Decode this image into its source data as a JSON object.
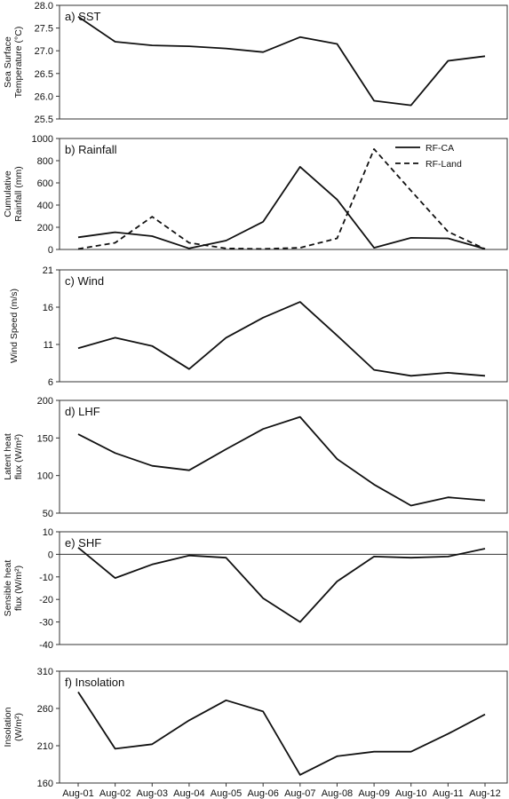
{
  "chart_data": {
    "type": "line",
    "categories": [
      "Aug-01",
      "Aug-02",
      "Aug-03",
      "Aug-04",
      "Aug-05",
      "Aug-06",
      "Aug-07",
      "Aug-08",
      "Aug-09",
      "Aug-10",
      "Aug-11",
      "Aug-12"
    ],
    "panels": [
      {
        "id": "sst",
        "title": "a) SST",
        "ylabel": [
          "Sea Surface",
          "Temperature (°C)"
        ],
        "ylim": [
          25.5,
          28.0
        ],
        "yticks": [
          "28.0",
          "27.5",
          "27.0",
          "26.5",
          "26.0",
          "25.5"
        ],
        "tick_values": [
          28.0,
          27.5,
          27.0,
          26.5,
          26.0,
          25.5
        ],
        "series": [
          {
            "dash": false,
            "values": [
              27.75,
              27.2,
              27.12,
              27.1,
              27.05,
              26.97,
              27.3,
              27.15,
              25.9,
              25.8,
              26.78,
              26.88
            ]
          }
        ]
      },
      {
        "id": "rainfall",
        "title": "b) Rainfall",
        "ylabel": [
          "Cumulative",
          "Rainfall (mm)"
        ],
        "ylim": [
          0,
          1000
        ],
        "yticks": [
          "1000",
          "800",
          "600",
          "400",
          "200",
          "0"
        ],
        "tick_values": [
          1000,
          800,
          600,
          400,
          200,
          0
        ],
        "legend": true,
        "series": [
          {
            "name": "RF-CA",
            "dash": false,
            "values": [
              110,
              155,
              120,
              10,
              80,
              250,
              745,
              450,
              15,
              105,
              100,
              5
            ]
          },
          {
            "name": "RF-Land",
            "dash": true,
            "values": [
              5,
              60,
              295,
              60,
              10,
              5,
              15,
              100,
              905,
              530,
              160,
              5
            ]
          }
        ]
      },
      {
        "id": "wind",
        "title": "c) Wind",
        "ylabel": [
          "Wind Speed (m/s)"
        ],
        "ylim": [
          6,
          21
        ],
        "yticks": [
          "21",
          "16",
          "11",
          "6"
        ],
        "tick_values": [
          21,
          16,
          11,
          6
        ],
        "series": [
          {
            "dash": false,
            "values": [
              10.5,
              11.9,
              10.8,
              7.7,
              11.9,
              14.6,
              16.7,
              12.2,
              7.6,
              6.8,
              7.2,
              6.8
            ]
          }
        ]
      },
      {
        "id": "lhf",
        "title": "d) LHF",
        "ylabel": [
          "Latent  heat",
          "flux (W/m²)"
        ],
        "ylim": [
          50,
          200
        ],
        "yticks": [
          "200",
          "150",
          "100",
          "50"
        ],
        "tick_values": [
          200,
          150,
          100,
          50
        ],
        "series": [
          {
            "dash": false,
            "values": [
              155,
              130,
              113,
              107,
              135,
              162,
              178,
              122,
              88,
              60,
              71,
              67
            ]
          }
        ]
      },
      {
        "id": "shf",
        "title": "e) SHF",
        "ylabel": [
          "Sensible heat",
          "flux (W/m²)"
        ],
        "ylim": [
          -40,
          10
        ],
        "yticks": [
          "10",
          "0",
          "-10",
          "-20",
          "-30",
          "-40"
        ],
        "tick_values": [
          10,
          0,
          -10,
          -20,
          -30,
          -40
        ],
        "zero_line": true,
        "series": [
          {
            "dash": false,
            "values": [
              3,
              -10.5,
              -4.5,
              -0.5,
              -1.5,
              -19.5,
              -30,
              -12,
              -1,
              -1.5,
              -1,
              2.5
            ]
          }
        ]
      },
      {
        "id": "insolation",
        "title": "f) Insolation",
        "ylabel": [
          "Insolation",
          "(W/m²)"
        ],
        "ylim": [
          160,
          310
        ],
        "yticks": [
          "310",
          "260",
          "210",
          "160"
        ],
        "tick_values": [
          310,
          260,
          210,
          160
        ],
        "series": [
          {
            "dash": false,
            "values": [
              282,
              206,
              212,
              244,
              271,
              256,
              171,
              196,
              202,
              202,
              226,
              252
            ]
          }
        ]
      }
    ]
  }
}
